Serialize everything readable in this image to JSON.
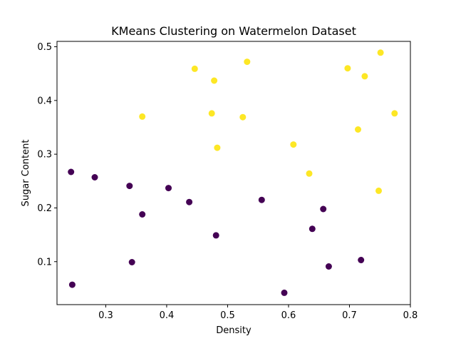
{
  "chart_data": {
    "type": "scatter",
    "title": "KMeans Clustering on Watermelon Dataset",
    "xlabel": "Density",
    "ylabel": "Sugar Content",
    "xlim": [
      0.22,
      0.8
    ],
    "ylim": [
      0.02,
      0.51
    ],
    "xticks": [
      0.3,
      0.4,
      0.5,
      0.6,
      0.7,
      0.8
    ],
    "yticks": [
      0.1,
      0.2,
      0.3,
      0.4,
      0.5
    ],
    "xtick_labels": [
      "0.3",
      "0.4",
      "0.5",
      "0.6",
      "0.7",
      "0.8"
    ],
    "ytick_labels": [
      "0.1",
      "0.2",
      "0.3",
      "0.4",
      "0.5"
    ],
    "grid": false,
    "series": [
      {
        "color": "#440154",
        "points": [
          {
            "x": 0.243,
            "y": 0.267
          },
          {
            "x": 0.245,
            "y": 0.057
          },
          {
            "x": 0.282,
            "y": 0.257
          },
          {
            "x": 0.339,
            "y": 0.241
          },
          {
            "x": 0.343,
            "y": 0.099
          },
          {
            "x": 0.36,
            "y": 0.188
          },
          {
            "x": 0.403,
            "y": 0.237
          },
          {
            "x": 0.437,
            "y": 0.211
          },
          {
            "x": 0.481,
            "y": 0.149
          },
          {
            "x": 0.556,
            "y": 0.215
          },
          {
            "x": 0.593,
            "y": 0.042
          },
          {
            "x": 0.639,
            "y": 0.161
          },
          {
            "x": 0.657,
            "y": 0.198
          },
          {
            "x": 0.666,
            "y": 0.091
          },
          {
            "x": 0.719,
            "y": 0.103
          }
        ]
      },
      {
        "color": "#fde725",
        "points": [
          {
            "x": 0.36,
            "y": 0.37
          },
          {
            "x": 0.446,
            "y": 0.459
          },
          {
            "x": 0.474,
            "y": 0.376
          },
          {
            "x": 0.478,
            "y": 0.437
          },
          {
            "x": 0.483,
            "y": 0.312
          },
          {
            "x": 0.525,
            "y": 0.369
          },
          {
            "x": 0.532,
            "y": 0.472
          },
          {
            "x": 0.608,
            "y": 0.318
          },
          {
            "x": 0.634,
            "y": 0.264
          },
          {
            "x": 0.697,
            "y": 0.46
          },
          {
            "x": 0.714,
            "y": 0.346
          },
          {
            "x": 0.725,
            "y": 0.445
          },
          {
            "x": 0.748,
            "y": 0.232
          },
          {
            "x": 0.751,
            "y": 0.489
          },
          {
            "x": 0.774,
            "y": 0.376
          }
        ]
      }
    ]
  }
}
